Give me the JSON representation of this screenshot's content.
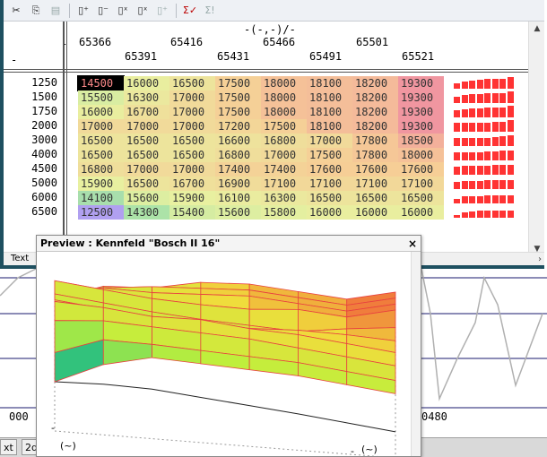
{
  "toolbar": {
    "icons": [
      "cut-icon",
      "copy-icon",
      "paste-icon",
      "insert-row-icon",
      "delete-row-icon",
      "insert-col-icon",
      "delete-col-icon",
      "copy-map-icon",
      "sum-check-icon",
      "sum-icon"
    ]
  },
  "table": {
    "x_axis_unit": "-(-,-)/-",
    "row_axis_dash": "-",
    "header_dash": "-",
    "x_labels_top": [
      "65366",
      "65416",
      "65466",
      "65501"
    ],
    "x_labels_bottom": [
      "65391",
      "65431",
      "65491",
      "65521"
    ],
    "rows": [
      {
        "rpm": "1250",
        "values": [
          "14500",
          "16000",
          "16500",
          "17500",
          "18000",
          "18100",
          "18200",
          "19300"
        ]
      },
      {
        "rpm": "1500",
        "values": [
          "15500",
          "16300",
          "17000",
          "17500",
          "18000",
          "18100",
          "18200",
          "19300"
        ]
      },
      {
        "rpm": "1750",
        "values": [
          "16000",
          "16700",
          "17000",
          "17500",
          "18000",
          "18100",
          "18200",
          "19300"
        ]
      },
      {
        "rpm": "2000",
        "values": [
          "17000",
          "17000",
          "17000",
          "17200",
          "17500",
          "18100",
          "18200",
          "19300"
        ]
      },
      {
        "rpm": "3000",
        "values": [
          "16500",
          "16500",
          "16500",
          "16600",
          "16800",
          "17000",
          "17800",
          "18500"
        ]
      },
      {
        "rpm": "4000",
        "values": [
          "16500",
          "16500",
          "16500",
          "16800",
          "17000",
          "17500",
          "17800",
          "18000"
        ]
      },
      {
        "rpm": "4500",
        "values": [
          "16800",
          "17000",
          "17000",
          "17400",
          "17400",
          "17600",
          "17600",
          "17600"
        ]
      },
      {
        "rpm": "5000",
        "values": [
          "15900",
          "16500",
          "16700",
          "16900",
          "17100",
          "17100",
          "17100",
          "17100"
        ]
      },
      {
        "rpm": "6000",
        "values": [
          "14100",
          "15600",
          "15900",
          "16100",
          "16300",
          "16500",
          "16500",
          "16500"
        ]
      },
      {
        "rpm": "6500",
        "values": [
          "12500",
          "14300",
          "15400",
          "15600",
          "15800",
          "16000",
          "16000",
          "16000"
        ]
      }
    ],
    "bottom_tab": "Text"
  },
  "preview": {
    "title": "Preview : Kennfeld \"Bosch II 16\"",
    "close": "×",
    "axis_label_left": "(~)",
    "axis_label_right": "(~)",
    "marker_left": "-",
    "marker_right": "-"
  },
  "background": {
    "left_number": "000",
    "right_number": "0480",
    "tabs": [
      "xt",
      "2d"
    ]
  }
}
